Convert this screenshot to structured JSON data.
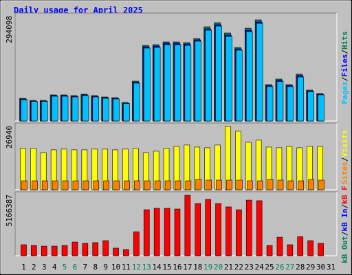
{
  "chart_data": [
    {
      "type": "bar",
      "title": "Daily usage for April 2025",
      "categories": [
        "1",
        "2",
        "3",
        "4",
        "5",
        "6",
        "7",
        "8",
        "9",
        "10",
        "11",
        "12",
        "13",
        "14",
        "15",
        "16",
        "17",
        "18",
        "19",
        "20",
        "21",
        "22",
        "23",
        "24",
        "25",
        "26",
        "27",
        "28",
        "29",
        "30",
        "31"
      ],
      "category_colors": [
        "#000000",
        "#000000",
        "#000000",
        "#000000",
        "#00805c",
        "#00805c",
        "#000000",
        "#000000",
        "#000000",
        "#000000",
        "#000000",
        "#00805c",
        "#00805c",
        "#000000",
        "#000000",
        "#000000",
        "#000000",
        "#000000",
        "#00805c",
        "#00805c",
        "#000000",
        "#000000",
        "#000000",
        "#000000",
        "#000000",
        "#00805c",
        "#00805c",
        "#000000",
        "#000000",
        "#000000",
        "#000000"
      ],
      "legend_separator": "/",
      "series": [
        {
          "name": "Hits",
          "color": "#00805c",
          "values": [
            66000,
            60000,
            60000,
            76000,
            76000,
            74000,
            78000,
            74000,
            70000,
            68000,
            54000,
            116000,
            220000,
            222000,
            230000,
            230000,
            228000,
            240000,
            274000,
            286000,
            256000,
            214000,
            270000,
            294098,
            106000,
            122000,
            106000,
            136000,
            90000,
            80000,
            null
          ]
        },
        {
          "name": "Files",
          "color": "#0000ff",
          "values": [
            64000,
            58000,
            58000,
            74000,
            74000,
            72000,
            76000,
            72000,
            68000,
            66000,
            52000,
            113000,
            216000,
            218000,
            226000,
            226000,
            224000,
            236000,
            268000,
            280000,
            250000,
            210000,
            264000,
            288000,
            103000,
            118000,
            103000,
            132000,
            87000,
            78000,
            null
          ]
        },
        {
          "name": "Pages",
          "color": "#00c0ff",
          "values": [
            62000,
            57000,
            57000,
            72000,
            72000,
            70000,
            74000,
            70000,
            66000,
            64000,
            51000,
            110000,
            212000,
            214000,
            222000,
            222000,
            220000,
            232000,
            264000,
            276000,
            246000,
            206000,
            260000,
            284000,
            100000,
            115000,
            100000,
            128000,
            85000,
            76000,
            null
          ]
        }
      ],
      "ylim": [
        0,
        310000
      ],
      "yticks": [
        294098
      ]
    },
    {
      "type": "bar",
      "series": [
        {
          "name": "Visits",
          "color": "#ffff00",
          "values": [
            17580,
            17580,
            15820,
            17000,
            17300,
            17000,
            17000,
            17300,
            17300,
            17000,
            17300,
            17580,
            15820,
            16410,
            17580,
            18450,
            19040,
            18160,
            17870,
            19040,
            26940,
            24900,
            20200,
            21100,
            18160,
            17870,
            18450,
            17870,
            18450,
            18450,
            null
          ]
        },
        {
          "name": "Sites",
          "color": "#ff8000",
          "values": [
            3800,
            3800,
            3800,
            3800,
            3800,
            3800,
            3800,
            3800,
            3800,
            3800,
            3800,
            3800,
            3800,
            3800,
            3800,
            3800,
            3800,
            4400,
            4100,
            4100,
            4100,
            4100,
            3800,
            3800,
            4400,
            4100,
            3800,
            3800,
            4400,
            4100,
            null
          ]
        }
      ],
      "ylim": [
        0,
        27800
      ],
      "yticks": [
        26940
      ]
    },
    {
      "type": "bar",
      "series": [
        {
          "name": "kB F",
          "color": "#ff0000",
          "values": [
            940000,
            880000,
            820000,
            820000,
            880000,
            1170000,
            1060000,
            1120000,
            1290000,
            650000,
            530000,
            2050000,
            3930000,
            4050000,
            4050000,
            3990000,
            5166387,
            4460000,
            4810000,
            4460000,
            4170000,
            3930000,
            4750000,
            4700000,
            880000,
            1580000,
            940000,
            1640000,
            1290000,
            1060000,
            null
          ]
        },
        {
          "name": "kB In",
          "color": "#0000ff",
          "values": [
            0,
            0,
            0,
            0,
            0,
            0,
            0,
            0,
            0,
            0,
            0,
            0,
            0,
            0,
            0,
            0,
            0,
            0,
            0,
            0,
            0,
            0,
            0,
            0,
            0,
            0,
            0,
            0,
            0,
            0,
            null
          ]
        },
        {
          "name": "kB Out",
          "color": "#00805c",
          "values": [
            0,
            0,
            0,
            0,
            0,
            0,
            0,
            0,
            0,
            0,
            0,
            0,
            0,
            0,
            0,
            0,
            0,
            0,
            0,
            0,
            0,
            0,
            0,
            0,
            0,
            0,
            0,
            0,
            0,
            0,
            null
          ]
        }
      ],
      "ylim": [
        0,
        5342000
      ],
      "yticks": [
        5166387
      ]
    }
  ]
}
